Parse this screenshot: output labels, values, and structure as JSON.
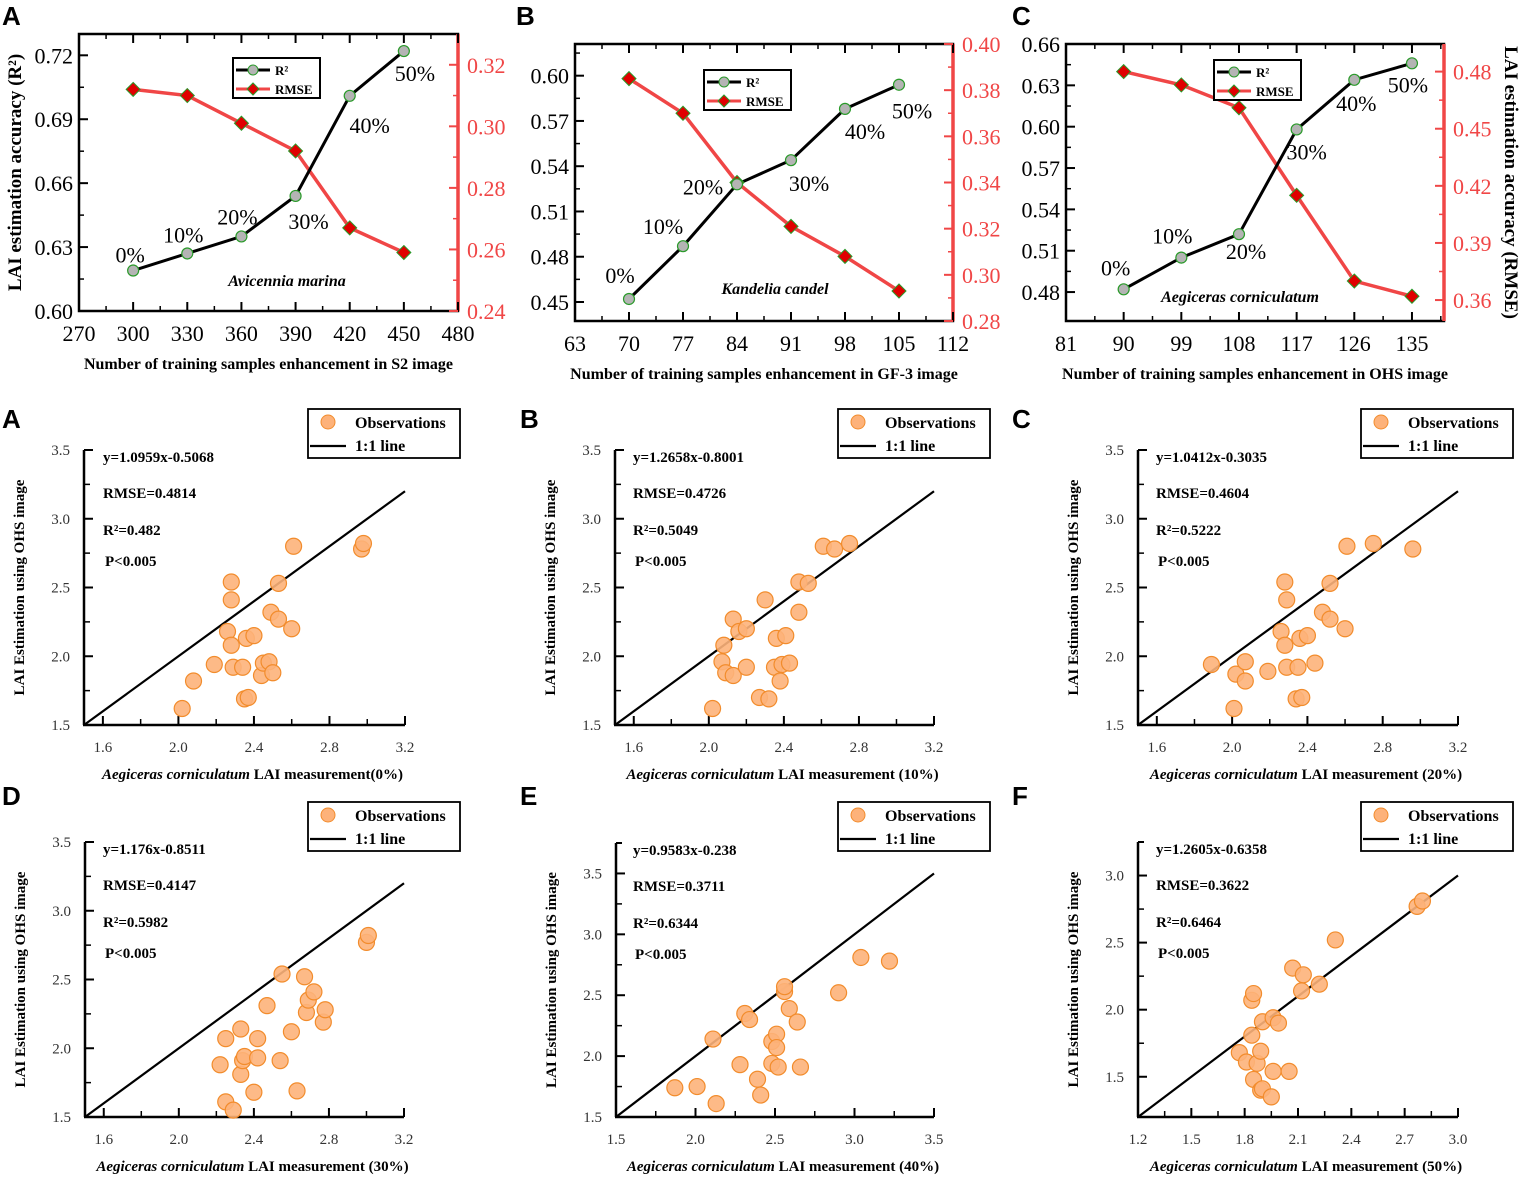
{
  "colors": {
    "r2_line": "#000000",
    "rmse_line": "#f04646",
    "r2_marker": "#b4b4b4",
    "marker_edge": "#2a9a2a",
    "rmse_marker": "#e00000",
    "obs_fill": "#fdb27a",
    "obs_edge": "#f28c2c"
  },
  "chart_data": [
    {
      "type": "line",
      "panel": "A",
      "xlabel": "Number of training samples enhancement in S2 image",
      "ylabel_left": "LAI estimation accuracy (R²)",
      "ylabel_right": "",
      "species": "Avicennia marina",
      "xlim": [
        270,
        480
      ],
      "x_ticks": [
        270,
        300,
        330,
        360,
        390,
        420,
        450,
        480
      ],
      "ylim_left": [
        0.6,
        0.73
      ],
      "y_ticks_left": [
        "0.60",
        "0.63",
        "0.66",
        "0.69",
        "0.72"
      ],
      "ylim_right": [
        0.24,
        0.33
      ],
      "y_ticks_right": [
        "0.24",
        "0.26",
        "0.28",
        "0.30",
        "0.32"
      ],
      "legend": [
        "R²",
        "RMSE"
      ],
      "x": [
        300,
        330,
        360,
        390,
        420,
        450
      ],
      "series": [
        {
          "name": "R²",
          "axis": "left",
          "values": [
            0.619,
            0.627,
            0.635,
            0.654,
            0.701,
            0.722
          ]
        },
        {
          "name": "RMSE",
          "axis": "right",
          "values": [
            0.312,
            0.31,
            0.301,
            0.292,
            0.267,
            0.259
          ]
        }
      ],
      "point_labels": [
        "0%",
        "10%",
        "20%",
        "30%",
        "40%",
        "50%"
      ]
    },
    {
      "type": "line",
      "panel": "B",
      "xlabel": "Number of training samples enhancement in GF-3 image",
      "ylabel_left": "",
      "ylabel_right": "",
      "species": "Kandelia candel",
      "xlim": [
        63,
        112
      ],
      "x_ticks": [
        63,
        70,
        77,
        84,
        91,
        98,
        105,
        112
      ],
      "ylim_left": [
        0.4374,
        0.621
      ],
      "y_ticks_left": [
        "0.45",
        "0.48",
        "0.51",
        "0.54",
        "0.57",
        "0.60"
      ],
      "ylim_right": [
        0.28,
        0.4
      ],
      "y_ticks_right": [
        "0.28",
        "0.30",
        "0.32",
        "0.34",
        "0.36",
        "0.38",
        "0.40"
      ],
      "legend": [
        "R²",
        "RMSE"
      ],
      "x": [
        70,
        77,
        84,
        91,
        98,
        105
      ],
      "series": [
        {
          "name": "R²",
          "axis": "left",
          "values": [
            0.452,
            0.487,
            0.528,
            0.544,
            0.578,
            0.594
          ]
        },
        {
          "name": "RMSE",
          "axis": "right",
          "values": [
            0.385,
            0.37,
            0.34,
            0.321,
            0.308,
            0.293
          ]
        }
      ],
      "point_labels": [
        "0%",
        "10%",
        "20%",
        "30%",
        "40%",
        "50%"
      ]
    },
    {
      "type": "line",
      "panel": "C",
      "xlabel": "Number of training samples enhancement in OHS image",
      "ylabel_left": "",
      "ylabel_right": "LAI estimation accuracy (RMSE)",
      "species": "Aegiceras corniculatum",
      "xlim": [
        81,
        140
      ],
      "x_ticks": [
        81,
        90,
        99,
        108,
        117,
        126,
        135
      ],
      "ylim_left": [
        0.459,
        0.66
      ],
      "y_ticks_left": [
        "0.48",
        "0.51",
        "0.54",
        "0.57",
        "0.60",
        "0.63",
        "0.66"
      ],
      "ylim_right": [
        0.349,
        0.4945
      ],
      "y_ticks_right": [
        "0.36",
        "0.39",
        "0.42",
        "0.45",
        "0.48"
      ],
      "legend": [
        "R²",
        "RMSE"
      ],
      "x": [
        90,
        99,
        108,
        117,
        126,
        135
      ],
      "series": [
        {
          "name": "R²",
          "axis": "left",
          "values": [
            0.482,
            0.505,
            0.522,
            0.598,
            0.634,
            0.646
          ]
        },
        {
          "name": "RMSE",
          "axis": "right",
          "values": [
            0.48,
            0.473,
            0.461,
            0.415,
            0.37,
            0.362
          ]
        }
      ],
      "point_labels": [
        "0%",
        "10%",
        "20%",
        "30%",
        "40%",
        "50%"
      ]
    },
    {
      "type": "scatter",
      "panel": "A",
      "equation": "y=1.0959x-0.5068",
      "rmse": "RMSE=0.4814",
      "r2": "R²=0.482",
      "p": "P<0.005",
      "xlabel_species": "Aegiceras corniculatum",
      "xlabel_rest": " LAI measurement(0%)",
      "ylabel": "LAI Estimation using OHS image",
      "legend": [
        "Observations",
        "1:1 line"
      ],
      "xlim": [
        1.5,
        3.2
      ],
      "x_ticks": [
        "1.6",
        "2.0",
        "2.4",
        "2.8",
        "3.2"
      ],
      "ylim": [
        1.5,
        3.5
      ],
      "y_ticks": [
        "1.5",
        "2.0",
        "2.5",
        "3.0",
        "3.5"
      ],
      "points": [
        [
          2.02,
          1.62
        ],
        [
          2.08,
          1.82
        ],
        [
          2.19,
          1.94
        ],
        [
          2.26,
          2.18
        ],
        [
          2.28,
          2.54
        ],
        [
          2.28,
          2.41
        ],
        [
          2.28,
          2.08
        ],
        [
          2.29,
          1.92
        ],
        [
          2.34,
          1.92
        ],
        [
          2.35,
          1.69
        ],
        [
          2.37,
          1.7
        ],
        [
          2.36,
          2.13
        ],
        [
          2.4,
          2.15
        ],
        [
          2.44,
          1.86
        ],
        [
          2.45,
          1.95
        ],
        [
          2.48,
          1.96
        ],
        [
          2.5,
          1.88
        ],
        [
          2.49,
          2.32
        ],
        [
          2.53,
          2.27
        ],
        [
          2.53,
          2.53
        ],
        [
          2.6,
          2.2
        ],
        [
          2.61,
          2.8
        ],
        [
          2.97,
          2.78
        ],
        [
          2.98,
          2.82
        ]
      ]
    },
    {
      "type": "scatter",
      "panel": "B",
      "equation": "y=1.2658x-0.8001",
      "rmse": "RMSE=0.4726",
      "r2": "R²=0.5049",
      "p": "P<0.005",
      "xlabel_species": "Aegiceras corniculatum",
      "xlabel_rest": " LAI measurement (10%)",
      "ylabel": "LAI Estimation using OHS image",
      "legend": [
        "Observations",
        "1:1 line"
      ],
      "xlim": [
        1.5,
        3.2
      ],
      "x_ticks": [
        "1.6",
        "2.0",
        "2.4",
        "2.8",
        "3.2"
      ],
      "ylim": [
        1.5,
        3.5
      ],
      "y_ticks": [
        "1.5",
        "2.0",
        "2.5",
        "3.0",
        "3.5"
      ],
      "points": [
        [
          2.02,
          1.62
        ],
        [
          2.07,
          1.96
        ],
        [
          2.08,
          2.08
        ],
        [
          2.09,
          1.88
        ],
        [
          2.13,
          2.27
        ],
        [
          2.13,
          1.86
        ],
        [
          2.16,
          2.18
        ],
        [
          2.2,
          2.2
        ],
        [
          2.2,
          1.92
        ],
        [
          2.27,
          1.7
        ],
        [
          2.32,
          1.69
        ],
        [
          2.3,
          2.41
        ],
        [
          2.35,
          1.92
        ],
        [
          2.36,
          2.13
        ],
        [
          2.38,
          1.82
        ],
        [
          2.39,
          1.94
        ],
        [
          2.41,
          2.15
        ],
        [
          2.43,
          1.95
        ],
        [
          2.48,
          2.54
        ],
        [
          2.48,
          2.32
        ],
        [
          2.53,
          2.53
        ],
        [
          2.61,
          2.8
        ],
        [
          2.67,
          2.78
        ],
        [
          2.75,
          2.82
        ]
      ]
    },
    {
      "type": "scatter",
      "panel": "C",
      "equation": "y=1.0412x-0.3035",
      "rmse": "RMSE=0.4604",
      "r2": "R²=0.5222",
      "p": "P<0.005",
      "xlabel_species": "Aegiceras corniculatum",
      "xlabel_rest": " LAI measurement (20%)",
      "ylabel": "LAI Estimation using OHS image",
      "legend": [
        "Observations",
        "1:1 line"
      ],
      "xlim": [
        1.5,
        3.2
      ],
      "x_ticks": [
        "1.6",
        "2.0",
        "2.4",
        "2.8",
        "3.2"
      ],
      "ylim": [
        1.5,
        3.5
      ],
      "y_ticks": [
        "1.5",
        "2.0",
        "2.5",
        "3.0",
        "3.5"
      ],
      "points": [
        [
          1.89,
          1.94
        ],
        [
          2.01,
          1.62
        ],
        [
          2.02,
          1.87
        ],
        [
          2.07,
          1.96
        ],
        [
          2.07,
          1.82
        ],
        [
          2.19,
          1.89
        ],
        [
          2.26,
          2.18
        ],
        [
          2.28,
          2.54
        ],
        [
          2.29,
          2.41
        ],
        [
          2.28,
          2.08
        ],
        [
          2.29,
          1.92
        ],
        [
          2.34,
          1.69
        ],
        [
          2.35,
          1.92
        ],
        [
          2.36,
          2.13
        ],
        [
          2.37,
          1.7
        ],
        [
          2.4,
          2.15
        ],
        [
          2.44,
          1.95
        ],
        [
          2.48,
          2.32
        ],
        [
          2.52,
          2.53
        ],
        [
          2.52,
          2.27
        ],
        [
          2.6,
          2.2
        ],
        [
          2.61,
          2.8
        ],
        [
          2.75,
          2.82
        ],
        [
          2.96,
          2.78
        ]
      ]
    },
    {
      "type": "scatter",
      "panel": "D",
      "equation": "y=1.176x-0.8511",
      "rmse": "RMSE=0.4147",
      "r2": "R²=0.5982",
      "p": "P<0.005",
      "xlabel_species": "Aegiceras corniculatum",
      "xlabel_rest": " LAI measurement (30%)",
      "ylabel": "LAI Estimation using OHS image",
      "legend": [
        "Observations",
        "1:1 line"
      ],
      "xlim": [
        1.5,
        3.2
      ],
      "x_ticks": [
        "1.6",
        "2.0",
        "2.4",
        "2.8",
        "3.2"
      ],
      "ylim": [
        1.5,
        3.5
      ],
      "y_ticks": [
        "1.5",
        "2.0",
        "2.5",
        "3.0",
        "3.5"
      ],
      "points": [
        [
          2.25,
          1.61
        ],
        [
          2.29,
          1.55
        ],
        [
          2.22,
          1.88
        ],
        [
          2.25,
          2.07
        ],
        [
          2.33,
          1.81
        ],
        [
          2.34,
          1.91
        ],
        [
          2.35,
          1.94
        ],
        [
          2.33,
          2.14
        ],
        [
          2.4,
          1.68
        ],
        [
          2.42,
          1.93
        ],
        [
          2.42,
          2.07
        ],
        [
          2.47,
          2.31
        ],
        [
          2.54,
          1.91
        ],
        [
          2.55,
          2.54
        ],
        [
          2.6,
          2.12
        ],
        [
          2.63,
          1.69
        ],
        [
          2.67,
          2.52
        ],
        [
          2.68,
          2.26
        ],
        [
          2.69,
          2.35
        ],
        [
          2.72,
          2.41
        ],
        [
          2.77,
          2.19
        ],
        [
          2.78,
          2.28
        ],
        [
          3.0,
          2.77
        ],
        [
          3.01,
          2.82
        ]
      ]
    },
    {
      "type": "scatter",
      "panel": "E",
      "equation": "y=0.9583x-0.238",
      "rmse": "RMSE=0.3711",
      "r2": "R²=0.6344",
      "p": "P<0.005",
      "xlabel_species": "Aegiceras corniculatum",
      "xlabel_rest": " LAI measurement  (40%)",
      "ylabel": "LAI Estimation using OHS image",
      "legend": [
        "Observations",
        "1:1 line"
      ],
      "xlim": [
        1.5,
        3.5
      ],
      "x_ticks": [
        "1.5",
        "2.0",
        "2.5",
        "3.0",
        "3.5"
      ],
      "ylim": [
        1.5,
        3.75
      ],
      "y_ticks": [
        "1.5",
        "2.0",
        "2.5",
        "3.0",
        "3.5"
      ],
      "points": [
        [
          1.87,
          1.74
        ],
        [
          2.01,
          1.75
        ],
        [
          2.13,
          1.61
        ],
        [
          2.11,
          2.14
        ],
        [
          2.28,
          1.93
        ],
        [
          2.31,
          2.35
        ],
        [
          2.34,
          2.3
        ],
        [
          2.39,
          1.81
        ],
        [
          2.41,
          1.68
        ],
        [
          2.48,
          2.12
        ],
        [
          2.48,
          1.94
        ],
        [
          2.51,
          2.18
        ],
        [
          2.51,
          2.07
        ],
        [
          2.52,
          1.91
        ],
        [
          2.56,
          2.53
        ],
        [
          2.56,
          2.57
        ],
        [
          2.59,
          2.39
        ],
        [
          2.64,
          2.28
        ],
        [
          2.66,
          1.91
        ],
        [
          2.9,
          2.52
        ],
        [
          3.04,
          2.81
        ],
        [
          3.22,
          2.78
        ]
      ]
    },
    {
      "type": "scatter",
      "panel": "F",
      "equation": "y=1.2605x-0.6358",
      "rmse": "RMSE=0.3622",
      "r2": "R²=0.6464",
      "p": "P<0.005",
      "xlabel_species": "Aegiceras corniculatum",
      "xlabel_rest": " LAI measurement (50%)",
      "ylabel": "LAI Estimation using OHS image",
      "legend": [
        "Observations",
        "1:1 line"
      ],
      "xlim": [
        1.2,
        3.0
      ],
      "x_ticks": [
        "1.2",
        "1.5",
        "1.8",
        "2.1",
        "2.4",
        "2.7",
        "3.0"
      ],
      "ylim": [
        1.2,
        3.25
      ],
      "y_ticks": [
        "1.5",
        "2.0",
        "2.5",
        "3.0"
      ],
      "points": [
        [
          1.77,
          1.68
        ],
        [
          1.81,
          1.61
        ],
        [
          1.84,
          1.81
        ],
        [
          1.85,
          1.48
        ],
        [
          1.84,
          2.07
        ],
        [
          1.85,
          2.12
        ],
        [
          1.87,
          1.6
        ],
        [
          1.89,
          1.69
        ],
        [
          1.89,
          1.4
        ],
        [
          1.9,
          1.41
        ],
        [
          1.9,
          1.91
        ],
        [
          1.95,
          1.35
        ],
        [
          1.96,
          1.94
        ],
        [
          1.96,
          1.54
        ],
        [
          1.99,
          1.9
        ],
        [
          2.05,
          1.54
        ],
        [
          2.07,
          2.31
        ],
        [
          2.12,
          2.14
        ],
        [
          2.13,
          2.26
        ],
        [
          2.22,
          2.19
        ],
        [
          2.31,
          2.52
        ],
        [
          2.77,
          2.77
        ],
        [
          2.8,
          2.81
        ]
      ]
    }
  ]
}
